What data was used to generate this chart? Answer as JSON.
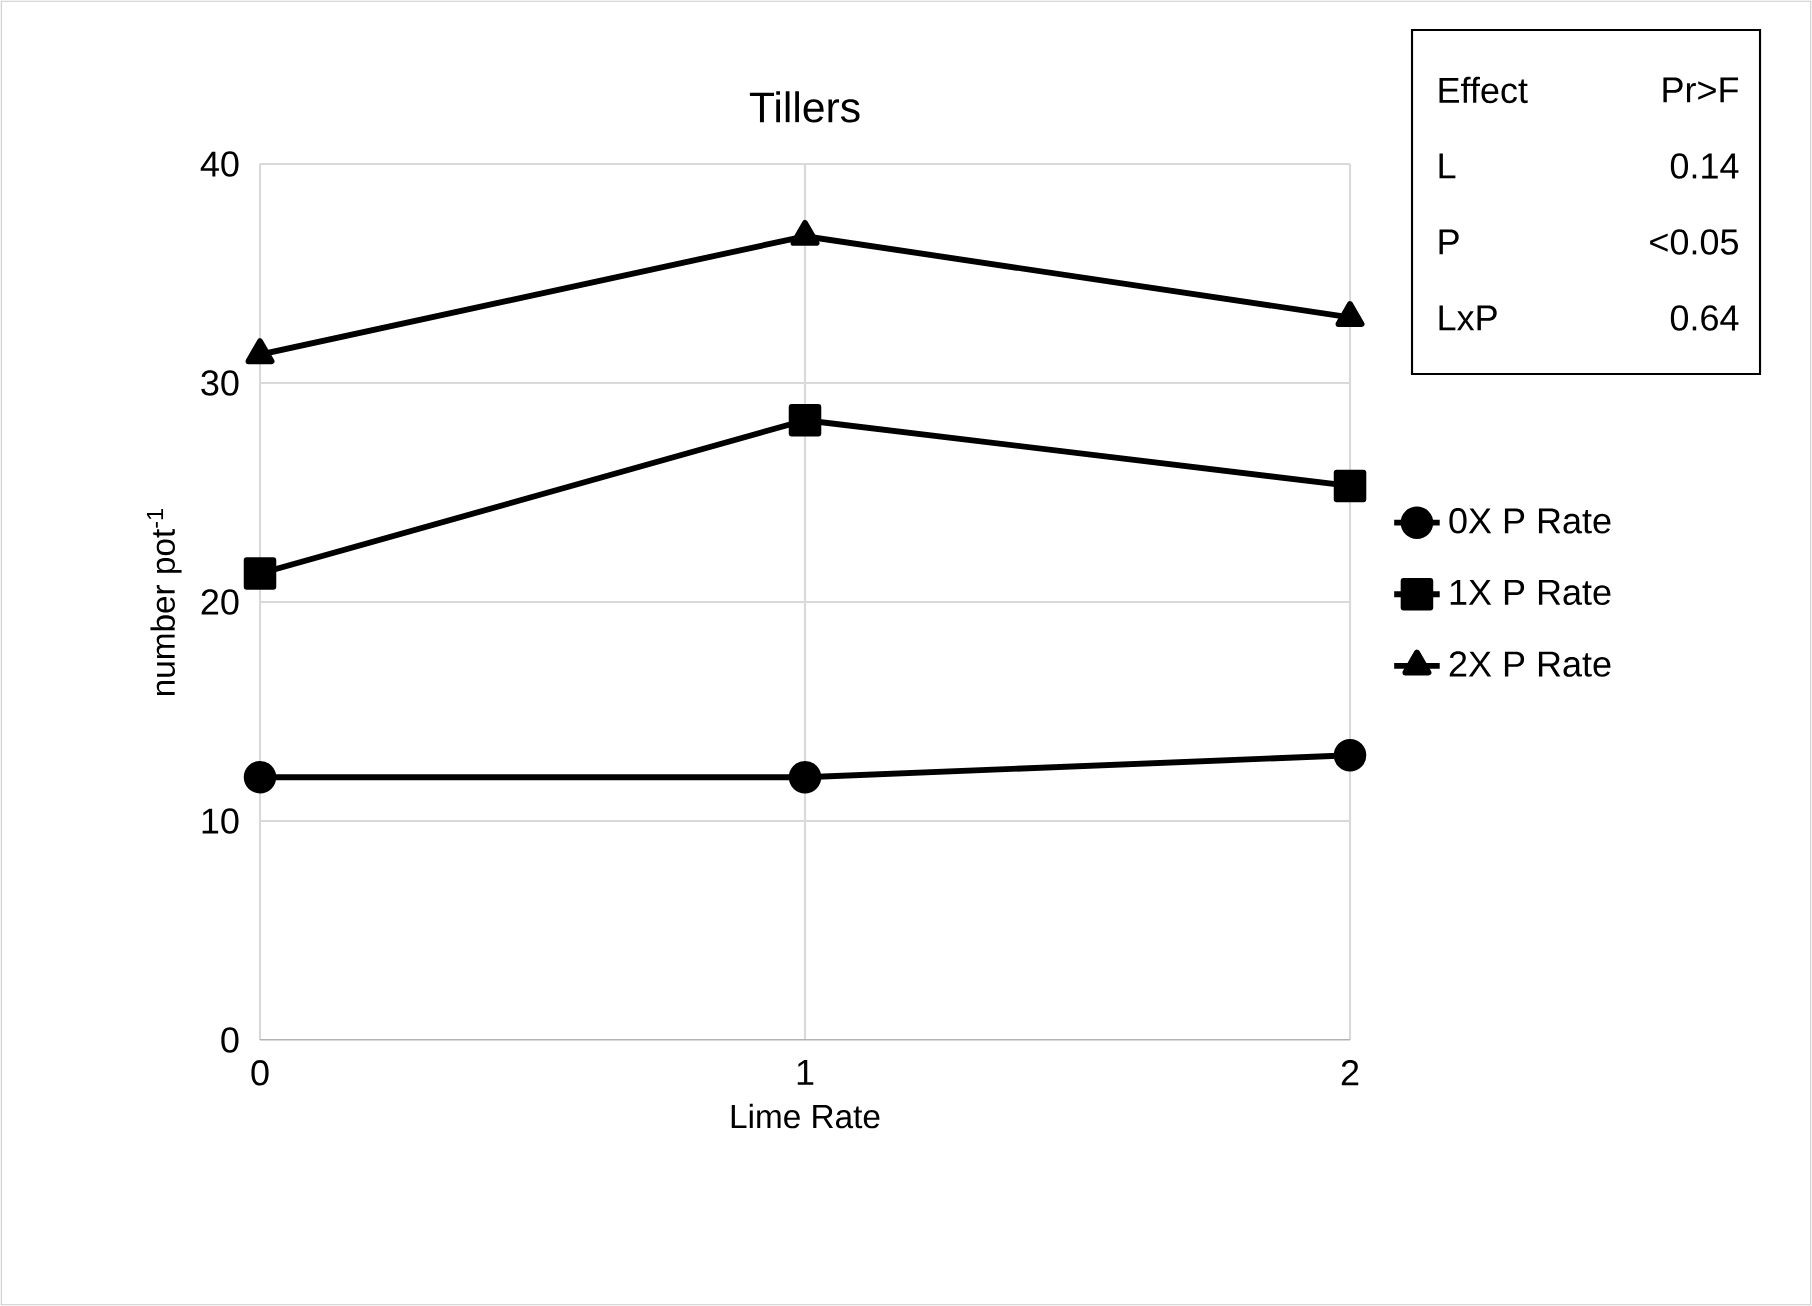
{
  "chart_data": {
    "type": "line",
    "title": "Tillers",
    "xlabel": "Lime Rate",
    "ylabel": "number pot$^{-1}$",
    "x": [
      0,
      1,
      2
    ],
    "xlim": [
      0,
      2
    ],
    "xticks": [
      0,
      1,
      2
    ],
    "ylim": [
      0,
      40
    ],
    "yticks": [
      0,
      10,
      20,
      30,
      40
    ],
    "grid": true,
    "legend": "right",
    "line_style": "solid",
    "series": [
      {
        "name": "0X P Rate",
        "color": "#000000",
        "marker": "circle",
        "values": [
          12,
          12,
          13
        ]
      },
      {
        "name": "1X P Rate",
        "color": "#000000",
        "marker": "square",
        "values": [
          21.3,
          28.3,
          25.3
        ]
      },
      {
        "name": "2X P Rate",
        "color": "#000000",
        "marker": "triangle",
        "values": [
          31.3,
          36.7,
          33
        ]
      }
    ],
    "annotations": [
      "Effect",
      "Pr>F",
      "L",
      "0.14",
      "P",
      "<0.05",
      "LxP",
      "0.64"
    ]
  }
}
